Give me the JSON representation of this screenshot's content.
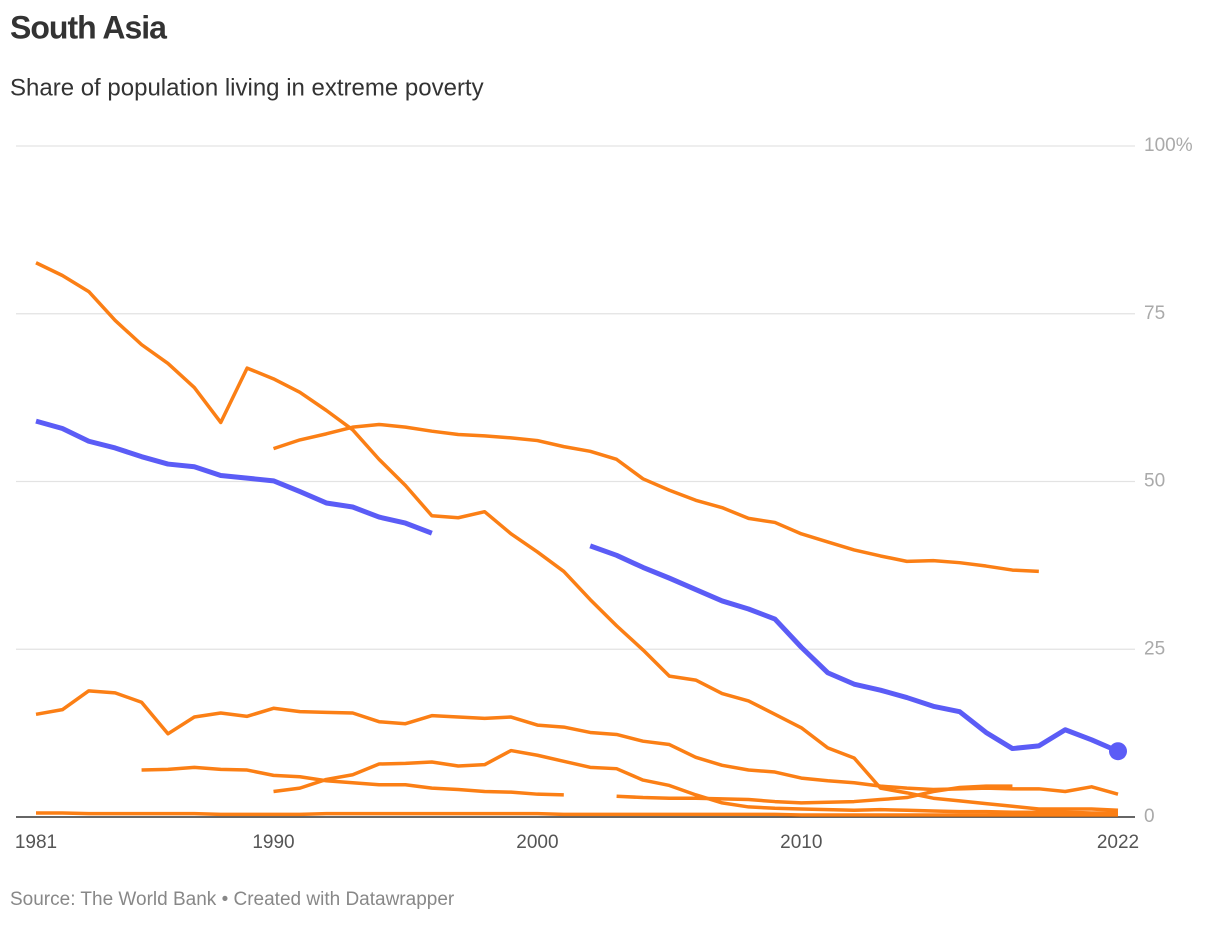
{
  "chart_data": {
    "type": "line",
    "title": "South Asia",
    "subtitle": "Share of population living in extreme poverty",
    "source": "Source: The World Bank • Created with Datawrapper",
    "x": [
      1981,
      1982,
      1983,
      1984,
      1985,
      1986,
      1987,
      1988,
      1989,
      1990,
      1991,
      1992,
      1993,
      1994,
      1995,
      1996,
      1997,
      1998,
      1999,
      2000,
      2001,
      2002,
      2003,
      2004,
      2005,
      2006,
      2007,
      2008,
      2009,
      2010,
      2011,
      2012,
      2013,
      2014,
      2015,
      2016,
      2017,
      2018,
      2019,
      2020,
      2021,
      2022
    ],
    "xlim": [
      1981,
      2022
    ],
    "xticks": [
      1981,
      1990,
      2000,
      2010,
      2022
    ],
    "ylim": [
      0,
      100
    ],
    "yticks": [
      0,
      25,
      50,
      75,
      {
        "value": 100,
        "label": "100%"
      }
    ],
    "grid": true,
    "series": [
      {
        "color": "#fb7f15",
        "values": [
          82.6,
          80.7,
          78.3,
          74,
          70.4,
          67.6,
          64,
          58.8,
          66.9,
          65.3,
          63.3,
          60.6,
          57.7,
          53.3,
          49.4,
          44.9,
          44.6,
          45.5,
          42.2,
          39.5,
          36.6,
          32.4,
          28.5,
          24.9,
          21,
          20.4,
          18.4,
          17.3,
          15.3,
          13.3,
          10.3,
          8.8,
          4.3,
          3.6,
          2.8,
          2.4,
          2,
          1.6,
          1.2,
          1.2,
          1.2,
          1.0
        ]
      },
      {
        "color": "#fb7f15",
        "values": [
          null,
          null,
          null,
          null,
          null,
          null,
          null,
          null,
          null,
          54.9,
          56.2,
          57.1,
          58.1,
          58.5,
          58.1,
          57.5,
          57,
          56.8,
          56.5,
          56.1,
          55.2,
          54.5,
          53.3,
          50.4,
          48.7,
          47.2,
          46.1,
          44.5,
          43.9,
          42.2,
          41,
          39.8,
          38.9,
          38.1,
          38.2,
          37.9,
          37.4,
          36.8,
          36.6,
          null,
          null,
          null
        ]
      },
      {
        "color": "#fb7f15",
        "values": [
          15.3,
          16,
          18.8,
          18.5,
          17.1,
          12.4,
          14.9,
          15.5,
          15,
          16.2,
          15.7,
          15.6,
          15.5,
          14.2,
          13.9,
          15.1,
          14.9,
          14.7,
          14.9,
          13.7,
          13.4,
          12.6,
          12.3,
          11.3,
          10.8,
          8.9,
          7.7,
          7,
          6.7,
          5.8,
          5.4,
          5.1,
          4.6,
          4.3,
          4.1,
          4.2,
          4.3,
          4.2,
          4.2,
          3.8,
          4.5,
          3.4
        ]
      },
      {
        "color": "#fb7f15",
        "values": [
          null,
          null,
          null,
          null,
          7,
          7.1,
          7.4,
          7.1,
          7,
          6.2,
          6,
          5.4,
          5.1,
          4.8,
          4.8,
          4.3,
          4.1,
          3.8,
          3.7,
          3.4,
          3.3,
          null,
          null,
          null,
          null,
          null,
          null,
          null,
          null,
          null,
          null,
          null,
          null,
          null,
          null,
          null,
          null,
          null,
          null,
          null,
          null,
          null
        ]
      },
      {
        "color": "#fb7f15",
        "values": [
          null,
          null,
          null,
          null,
          null,
          null,
          null,
          null,
          null,
          3.8,
          4.3,
          5.6,
          6.3,
          7.9,
          8,
          8.2,
          7.6,
          7.8,
          9.9,
          9.2,
          8.3,
          7.4,
          7.2,
          5.5,
          4.7,
          3.3,
          2.1,
          1.5,
          1.3,
          1.2,
          1.1,
          1,
          1.1,
          1,
          0.9,
          0.8,
          0.8,
          0.7,
          0.7,
          0.7,
          0.6,
          0.6
        ]
      },
      {
        "color": "#fb7f15",
        "values": [
          null,
          null,
          null,
          null,
          null,
          null,
          null,
          null,
          null,
          null,
          null,
          null,
          null,
          null,
          null,
          null,
          null,
          null,
          null,
          null,
          null,
          null,
          3.1,
          2.9,
          2.8,
          2.8,
          2.7,
          2.6,
          2.3,
          2.1,
          2.2,
          2.3,
          2.6,
          2.9,
          3.8,
          4.4,
          4.6,
          4.6,
          null,
          null,
          null,
          null
        ]
      },
      {
        "color": "#fb7f15",
        "values": [
          0.6,
          0.6,
          0.5,
          0.5,
          0.5,
          0.5,
          0.5,
          0.4,
          0.4,
          0.4,
          0.4,
          0.5,
          0.5,
          0.5,
          0.5,
          0.5,
          0.5,
          0.5,
          0.5,
          0.5,
          0.4,
          0.4,
          0.4,
          0.4,
          0.4,
          0.4,
          0.4,
          0.4,
          0.4,
          0.3,
          0.3,
          0.3,
          0.3,
          0.3,
          0.3,
          0.3,
          0.3,
          0.3,
          0.3,
          0.3,
          0.3,
          0.3
        ]
      },
      {
        "color": "#5b5cf6",
        "values": [
          59,
          57.9,
          56,
          55,
          53.7,
          52.6,
          52.2,
          50.9,
          50.5,
          50.1,
          48.5,
          46.8,
          46.2,
          44.7,
          43.8,
          42.3,
          null,
          null,
          null,
          null,
          null,
          40.4,
          39,
          37.2,
          35.6,
          33.9,
          32.2,
          31,
          29.5,
          25.3,
          21.5,
          19.8,
          18.9,
          17.8,
          16.5,
          15.7,
          12.6,
          10.2,
          10.6,
          13,
          11.5,
          9.8
        ]
      }
    ]
  }
}
